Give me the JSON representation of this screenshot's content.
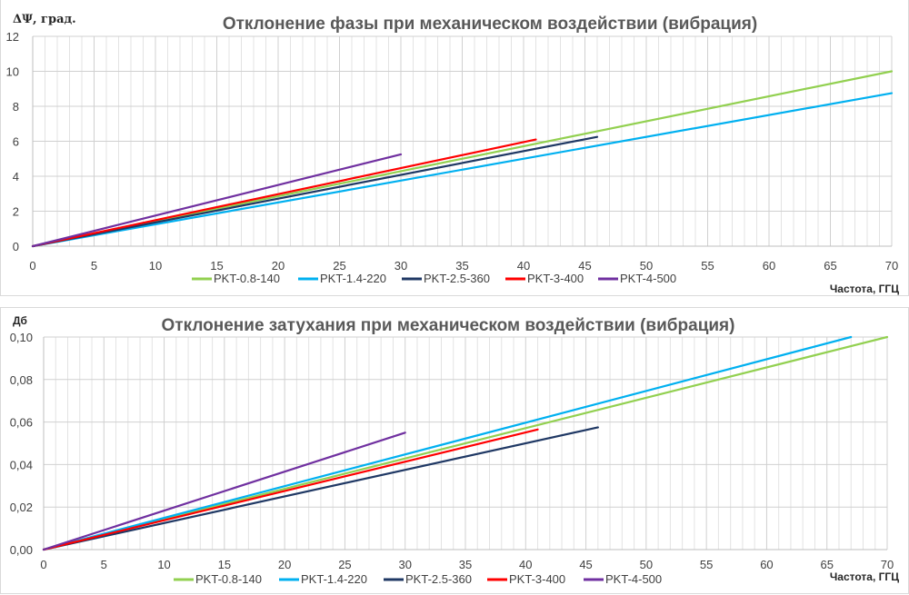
{
  "chart_data": [
    {
      "type": "line",
      "title": "Отклонение фазы при механическом воздействии (вибрация)",
      "ylabel": "ΔΨ, град.",
      "xlabel": "Частота, ГГЦ",
      "xlim": [
        0,
        70
      ],
      "ylim": [
        0,
        12
      ],
      "x_ticks": [
        "0",
        "5",
        "10",
        "15",
        "20",
        "25",
        "30",
        "35",
        "40",
        "45",
        "50",
        "55",
        "60",
        "65",
        "70"
      ],
      "y_ticks": [
        "0",
        "2",
        "4",
        "6",
        "8",
        "10",
        "12"
      ],
      "grid": true,
      "legend_position": "bottom",
      "series": [
        {
          "name": "PKT-0.8-140",
          "color": "#92d050",
          "points": [
            [
              0,
              0
            ],
            [
              70,
              10
            ]
          ]
        },
        {
          "name": "PKT-1.4-220",
          "color": "#00b0f0",
          "points": [
            [
              0,
              0
            ],
            [
              70,
              8.75
            ]
          ]
        },
        {
          "name": "PKT-2.5-360",
          "color": "#1f3864",
          "points": [
            [
              0,
              0
            ],
            [
              46,
              6.25
            ]
          ]
        },
        {
          "name": "PKT-3-400",
          "color": "#ff0000",
          "points": [
            [
              0,
              0
            ],
            [
              41,
              6.1
            ]
          ]
        },
        {
          "name": "PKT-4-500",
          "color": "#7030a0",
          "points": [
            [
              0,
              0
            ],
            [
              30,
              5.25
            ]
          ]
        }
      ]
    },
    {
      "type": "line",
      "title": "Отклонение затухания при механическом воздействии (вибрация)",
      "ylabel": "Дб",
      "xlabel": "Частота, ГГЦ",
      "xlim": [
        0,
        70
      ],
      "ylim": [
        0,
        0.1
      ],
      "x_ticks": [
        "0",
        "5",
        "10",
        "15",
        "20",
        "25",
        "30",
        "35",
        "40",
        "45",
        "50",
        "55",
        "60",
        "65",
        "70"
      ],
      "y_ticks": [
        "0,00",
        "0,02",
        "0,04",
        "0,06",
        "0,08",
        "0,10"
      ],
      "grid": true,
      "legend_position": "bottom",
      "series": [
        {
          "name": "PKT-0.8-140",
          "color": "#92d050",
          "points": [
            [
              0,
              0
            ],
            [
              70,
              0.1
            ]
          ]
        },
        {
          "name": "PKT-1.4-220",
          "color": "#00b0f0",
          "points": [
            [
              0,
              0
            ],
            [
              67,
              0.1
            ]
          ]
        },
        {
          "name": "PKT-2.5-360",
          "color": "#1f3864",
          "points": [
            [
              0,
              0
            ],
            [
              46,
              0.0575
            ]
          ]
        },
        {
          "name": "PKT-3-400",
          "color": "#ff0000",
          "points": [
            [
              0,
              0
            ],
            [
              41,
              0.0565
            ]
          ]
        },
        {
          "name": "PKT-4-500",
          "color": "#7030a0",
          "points": [
            [
              0,
              0
            ],
            [
              30,
              0.055
            ]
          ]
        }
      ]
    }
  ]
}
